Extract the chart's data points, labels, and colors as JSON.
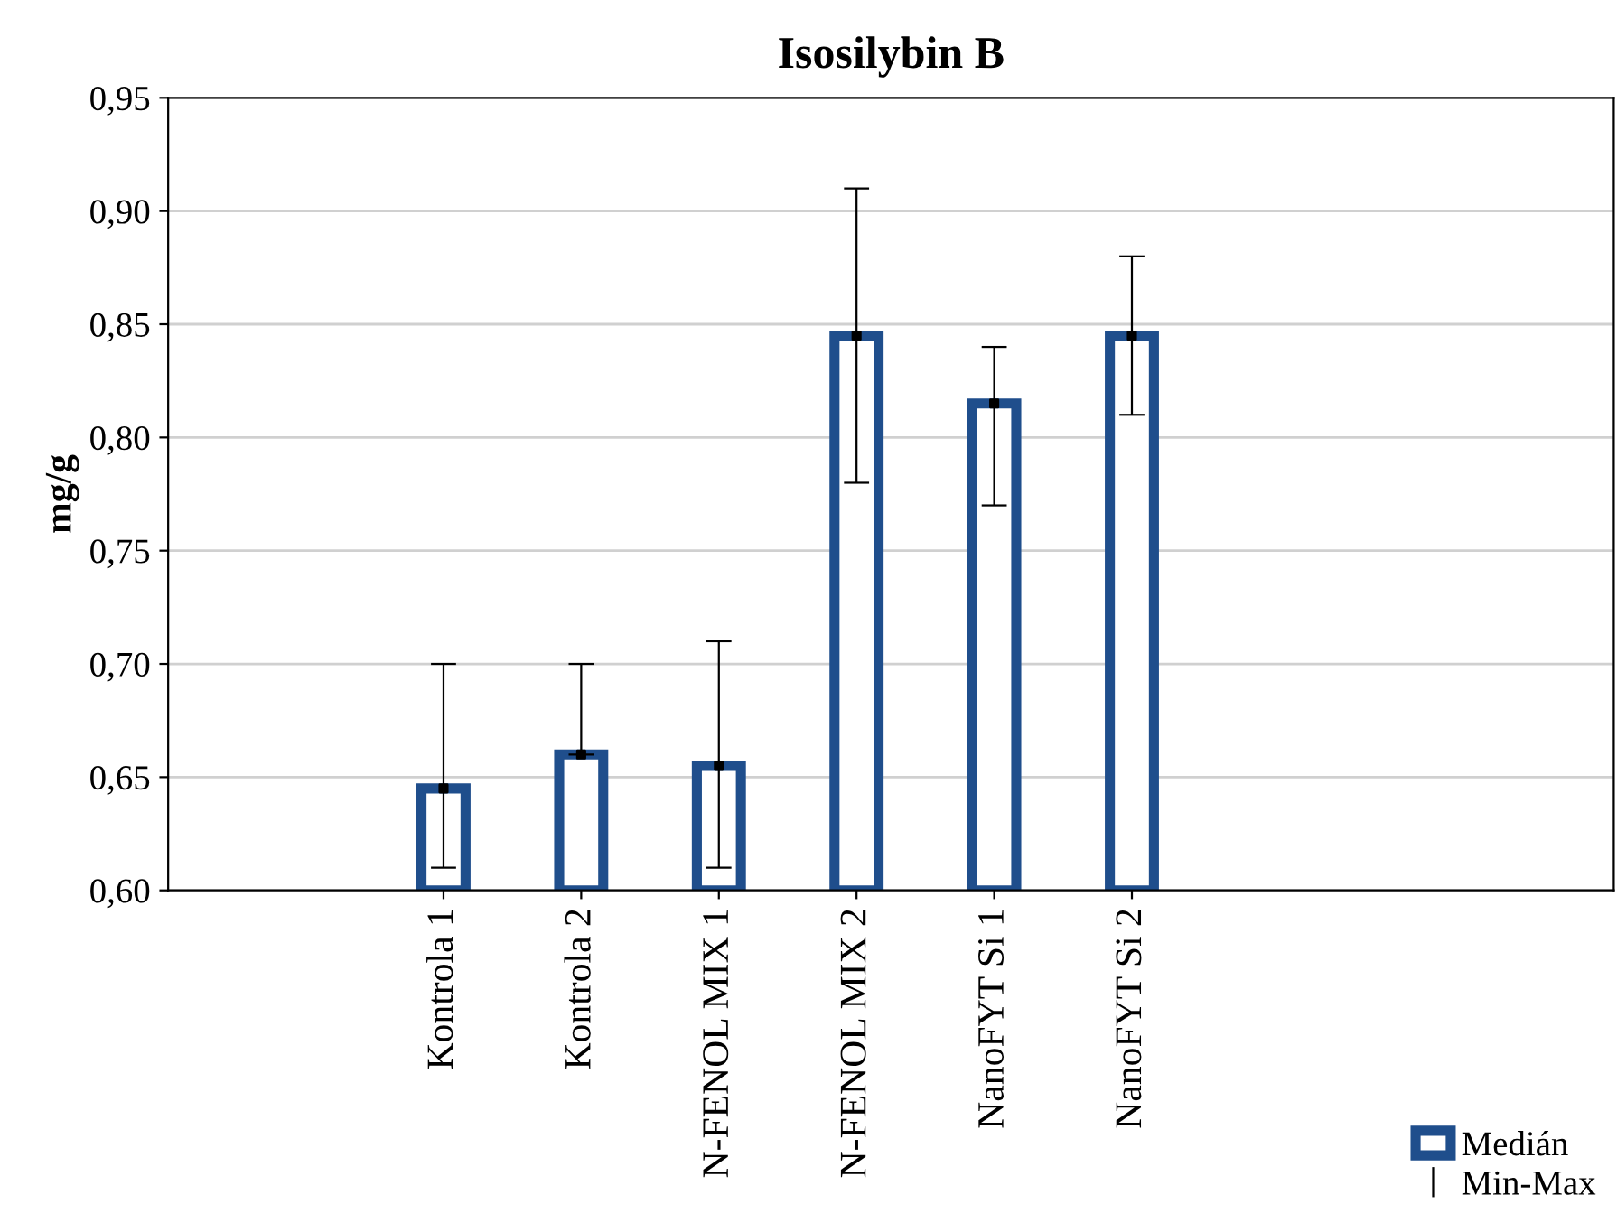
{
  "chart_data": {
    "type": "bar",
    "title": "Isosilybin B",
    "ylabel": "mg/g",
    "categories": [
      "Kontrola 1",
      "Kontrola 2",
      "N-FENOL MIX 1",
      "N-FENOL MIX 2",
      "NanoFYT Si 1",
      "NanoFYT Si 2"
    ],
    "series": [
      {
        "name": "Medián",
        "color": "#1f4e8c",
        "values": [
          0.645,
          0.66,
          0.655,
          0.845,
          0.815,
          0.845
        ],
        "errors": [
          [
            0.61,
            0.7
          ],
          [
            0.66,
            0.7
          ],
          [
            0.61,
            0.71
          ],
          [
            0.78,
            0.91
          ],
          [
            0.77,
            0.84
          ],
          [
            0.81,
            0.88
          ]
        ]
      },
      {
        "type": "scatter",
        "color": "#000000",
        "marker": "square",
        "values": [
          0.645,
          0.66,
          0.655,
          0.845,
          0.815,
          0.845
        ]
      }
    ],
    "annotations": [
      "Min-Max"
    ],
    "ylim": [
      0.6,
      0.95
    ],
    "yticks": [
      {
        "value": 0.6,
        "label": "0,60"
      },
      {
        "value": 0.65,
        "label": "0,65"
      },
      {
        "value": 0.7,
        "label": "0,70"
      },
      {
        "value": 0.75,
        "label": "0,75"
      },
      {
        "value": 0.8,
        "label": "0,80"
      },
      {
        "value": 0.85,
        "label": "0,85"
      },
      {
        "value": 0.9,
        "label": "0,90"
      },
      {
        "value": 0.95,
        "label": "0,95"
      }
    ],
    "grid": "y",
    "legend": "bottom right"
  }
}
